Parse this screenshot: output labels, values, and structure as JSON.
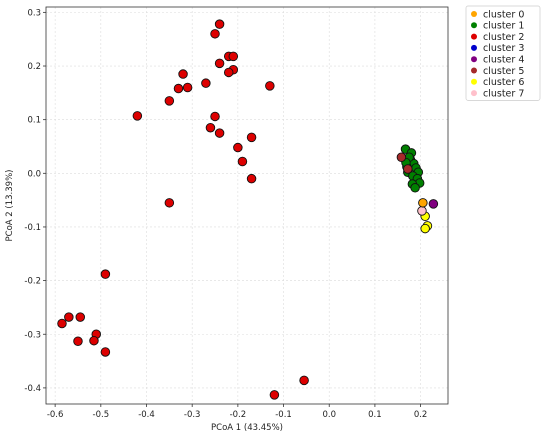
{
  "chart_data": {
    "type": "scatter",
    "title": "",
    "xlabel": "PCoA 1 (43.45%)",
    "ylabel": "PCoA 2 (13.39%)",
    "xlim": [
      -0.62,
      0.26
    ],
    "ylim": [
      -0.43,
      0.31
    ],
    "x_ticks": [
      -0.6,
      -0.5,
      -0.4,
      -0.3,
      -0.2,
      -0.1,
      0.0,
      0.1,
      0.2
    ],
    "y_ticks": [
      -0.4,
      -0.3,
      -0.2,
      -0.1,
      0.0,
      0.1,
      0.2,
      0.3
    ],
    "x_tick_labels": [
      "-0.6",
      "-0.5",
      "-0.4",
      "-0.3",
      "-0.2",
      "-0.1",
      "0.0",
      "0.1",
      "0.2"
    ],
    "y_tick_labels": [
      "-0.4",
      "-0.3",
      "-0.2",
      "-0.1",
      "0.0",
      "0.1",
      "0.2",
      "0.3"
    ],
    "grid": true,
    "legend_position": "outside-top-right",
    "series": [
      {
        "name": "cluster 0",
        "color": "#ffa500",
        "points": [
          [
            0.205,
            -0.055
          ]
        ]
      },
      {
        "name": "cluster 1",
        "color": "#008000",
        "points": [
          [
            0.167,
            0.045
          ],
          [
            0.18,
            0.038
          ],
          [
            0.178,
            0.025
          ],
          [
            0.185,
            0.018
          ],
          [
            0.17,
            0.012
          ],
          [
            0.172,
            0.002
          ],
          [
            0.19,
            0.01
          ],
          [
            0.195,
            0.002
          ],
          [
            0.183,
            -0.005
          ],
          [
            0.193,
            -0.01
          ],
          [
            0.198,
            -0.018
          ],
          [
            0.182,
            -0.02
          ],
          [
            0.188,
            -0.027
          ],
          [
            0.175,
            0.03
          ],
          [
            0.168,
            0.02
          ]
        ]
      },
      {
        "name": "cluster 2",
        "color": "#dd0000",
        "points": [
          [
            -0.24,
            0.278
          ],
          [
            -0.25,
            0.26
          ],
          [
            -0.22,
            0.218
          ],
          [
            -0.21,
            0.218
          ],
          [
            -0.24,
            0.205
          ],
          [
            -0.21,
            0.193
          ],
          [
            -0.22,
            0.188
          ],
          [
            -0.32,
            0.185
          ],
          [
            -0.27,
            0.168
          ],
          [
            -0.13,
            0.163
          ],
          [
            -0.33,
            0.158
          ],
          [
            -0.31,
            0.16
          ],
          [
            -0.35,
            0.135
          ],
          [
            -0.42,
            0.107
          ],
          [
            -0.25,
            0.106
          ],
          [
            -0.26,
            0.085
          ],
          [
            -0.24,
            0.075
          ],
          [
            -0.17,
            0.067
          ],
          [
            -0.2,
            0.048
          ],
          [
            -0.19,
            0.022
          ],
          [
            -0.17,
            -0.01
          ],
          [
            -0.35,
            -0.055
          ],
          [
            -0.49,
            -0.188
          ],
          [
            -0.57,
            -0.268
          ],
          [
            -0.545,
            -0.268
          ],
          [
            -0.585,
            -0.28
          ],
          [
            -0.51,
            -0.3
          ],
          [
            -0.55,
            -0.313
          ],
          [
            -0.515,
            -0.312
          ],
          [
            -0.49,
            -0.333
          ],
          [
            -0.055,
            -0.386
          ],
          [
            -0.12,
            -0.413
          ]
        ]
      },
      {
        "name": "cluster 3",
        "color": "#0000cc",
        "points": []
      },
      {
        "name": "cluster 4",
        "color": "#800080",
        "points": [
          [
            0.228,
            -0.057
          ]
        ]
      },
      {
        "name": "cluster 5",
        "color": "#a52a2a",
        "points": [
          [
            0.158,
            0.03
          ],
          [
            0.172,
            0.008
          ]
        ]
      },
      {
        "name": "cluster 6",
        "color": "#ffff00",
        "points": [
          [
            0.21,
            -0.08
          ],
          [
            0.215,
            -0.098
          ],
          [
            0.21,
            -0.103
          ]
        ]
      },
      {
        "name": "cluster 7",
        "color": "#ffc0cb",
        "points": [
          [
            0.203,
            -0.07
          ]
        ]
      }
    ]
  }
}
